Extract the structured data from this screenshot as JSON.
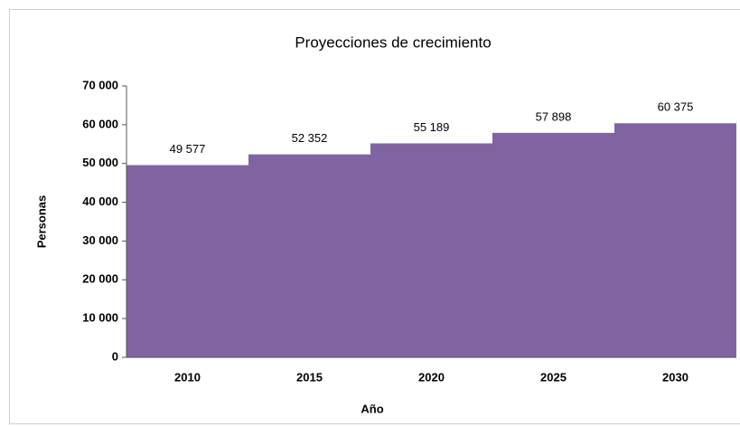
{
  "chart_data": {
    "type": "bar",
    "title": "Proyecciones de crecimiento",
    "x_label": "Año",
    "y_label": "Personas",
    "categories": [
      "2010",
      "2015",
      "2020",
      "2025",
      "2030"
    ],
    "values": [
      49577,
      52352,
      55189,
      57898,
      60375
    ],
    "value_labels": [
      "49 577",
      "52 352",
      "55 189",
      "57 898",
      "60 375"
    ],
    "color": "#8064a2",
    "ylim": [
      0,
      70000
    ],
    "yticks": [
      0,
      {
        "value": 10000,
        "label": "10 000"
      },
      {
        "value": 20000,
        "label": "20 000"
      },
      {
        "value": 30000,
        "label": "30 000"
      },
      {
        "value": 40000,
        "label": "40 000"
      },
      {
        "value": 50000,
        "label": "50 000"
      },
      {
        "value": 60000,
        "label": "60 000"
      },
      {
        "value": 70000,
        "label": "70 000"
      }
    ],
    "grid": false
  }
}
